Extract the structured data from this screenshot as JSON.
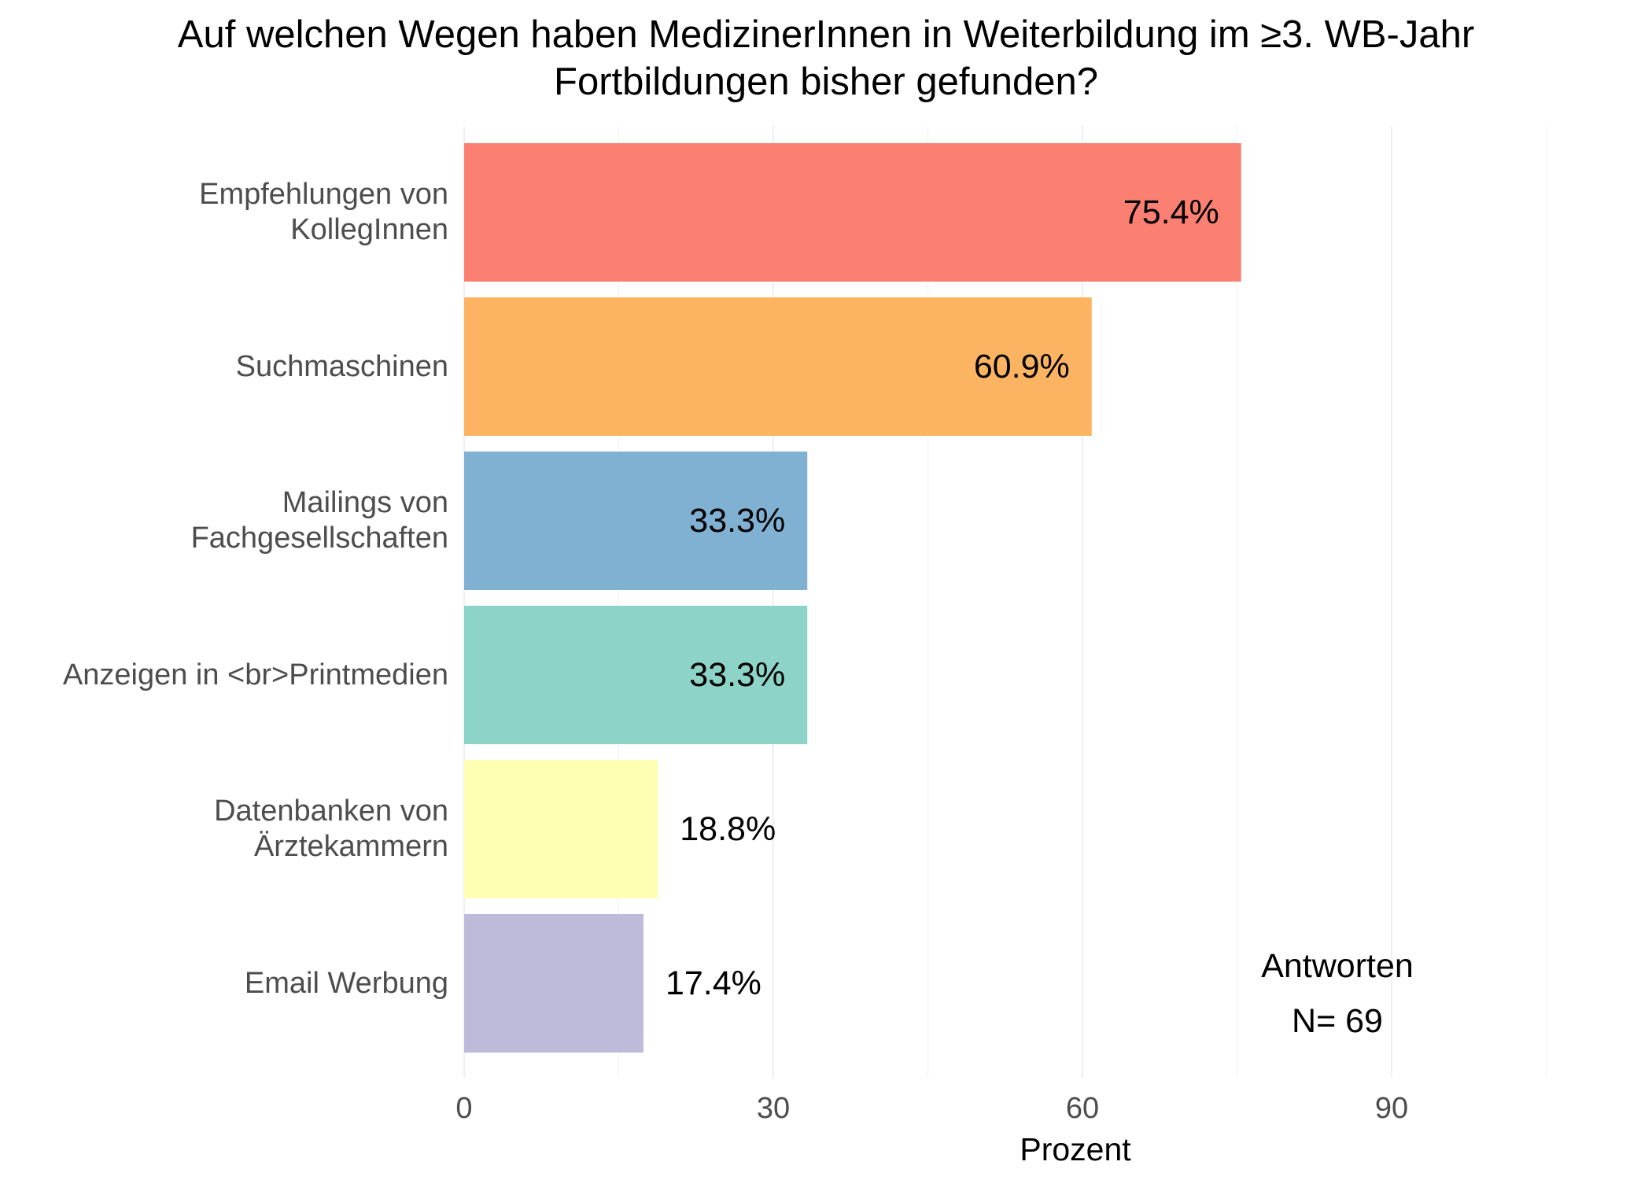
{
  "chart_data": {
    "type": "bar",
    "orientation": "horizontal",
    "title_lines": [
      "Auf welchen Wegen haben MedizinerInnen in Weiterbildung im ≥3. WB-Jahr",
      "Fortbildungen bisher gefunden?"
    ],
    "xlabel": "Prozent",
    "ylabel": "",
    "xlim": [
      0,
      105
    ],
    "x_ticks": [
      "0",
      "30",
      "60",
      "90"
    ],
    "grid": true,
    "legend": false,
    "categories": [
      [
        "Empfehlungen von",
        "KollegInnen"
      ],
      [
        "Suchmaschinen"
      ],
      [
        "Mailings von",
        "Fachgesellschaften"
      ],
      [
        "Anzeigen in <br>Printmedien"
      ],
      [
        "Datenbanken von",
        "Ärztekammern"
      ],
      [
        "Email Werbung"
      ]
    ],
    "values": [
      75.4,
      60.9,
      33.3,
      33.3,
      18.8,
      17.4
    ],
    "value_labels": [
      "75.4%",
      "60.9%",
      "33.3%",
      "33.3%",
      "18.8%",
      "17.4%"
    ],
    "colors": [
      "#FB8072",
      "#FDB462",
      "#80B1D3",
      "#8DD3C7",
      "#FFFFB3",
      "#BEBADA"
    ],
    "annotation": [
      "Antworten",
      "N= 69"
    ]
  }
}
